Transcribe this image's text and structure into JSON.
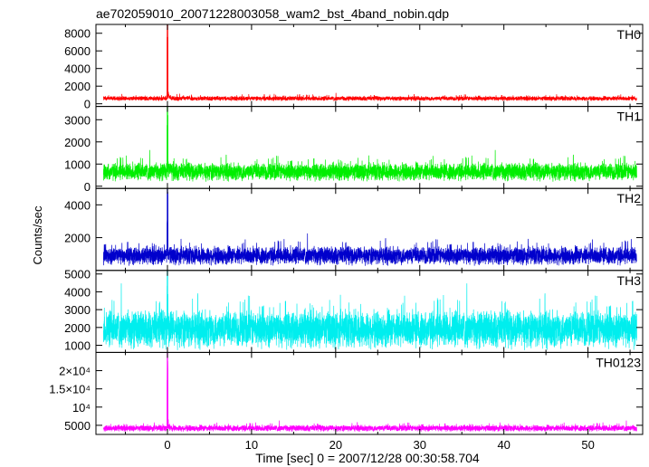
{
  "chart_data": {
    "type": "line",
    "title": "ae702059010_20071228003058_wam2_bst_4band_nobin.qdp",
    "xlabel": "Time [sec] 0 = 2007/12/28 00:30:58.704",
    "ylabel": "Counts/sec",
    "xlim": [
      -8.5,
      56.5
    ],
    "x_ticks": [
      0,
      10,
      20,
      30,
      40,
      50
    ],
    "x_tick_labels": [
      "0",
      "10",
      "20",
      "30",
      "40",
      "50"
    ],
    "panels": [
      {
        "name": "TH0",
        "color": "#ff0000",
        "ylim": [
          -300,
          9000
        ],
        "y_ticks": [
          0,
          2000,
          4000,
          6000,
          8000
        ],
        "y_tick_labels": [
          "0",
          "2000",
          "4000",
          "6000",
          "8000"
        ],
        "baseline": 600,
        "noise": 420,
        "spike_peak": 9000
      },
      {
        "name": "TH1",
        "color": "#00ee00",
        "ylim": [
          -100,
          3600
        ],
        "y_ticks": [
          0,
          1000,
          2000,
          3000
        ],
        "y_tick_labels": [
          "0",
          "1000",
          "2000",
          "3000"
        ],
        "baseline": 650,
        "noise": 650,
        "spike_peak": 3600
      },
      {
        "name": "TH2",
        "color": "#0000cc",
        "ylim": [
          0,
          5000
        ],
        "y_ticks": [
          2000,
          4000
        ],
        "y_tick_labels": [
          "2000",
          "4000"
        ],
        "baseline": 900,
        "noise": 900,
        "spike_peak": 5000
      },
      {
        "name": "TH3",
        "color": "#00eeee",
        "ylim": [
          600,
          5200
        ],
        "y_ticks": [
          1000,
          2000,
          3000,
          4000,
          5000
        ],
        "y_tick_labels": [
          "1000",
          "2000",
          "3000",
          "4000",
          "5000"
        ],
        "baseline": 1900,
        "noise": 1700,
        "spike_peak": 5200
      },
      {
        "name": "TH0123",
        "color": "#ff00ff",
        "ylim": [
          2500,
          25000
        ],
        "y_ticks": [
          5000,
          10000,
          15000,
          20000
        ],
        "y_tick_labels": [
          "5000",
          "10⁴",
          "1.5×10⁴",
          "2×10⁴"
        ],
        "baseline": 4200,
        "noise": 1400,
        "spike_peak": 25000
      }
    ]
  }
}
